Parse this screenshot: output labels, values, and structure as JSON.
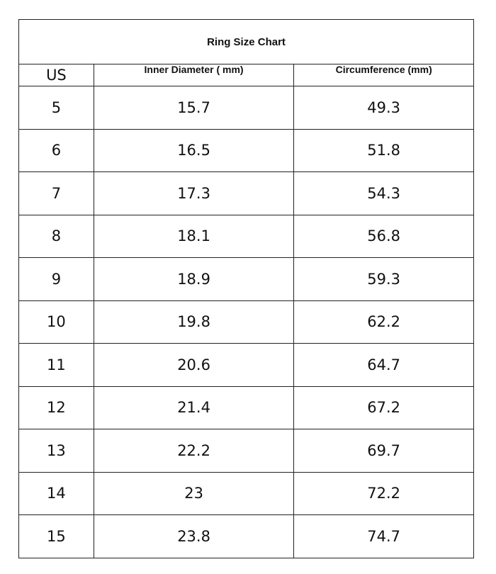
{
  "title": "Ring Size Chart",
  "headers": {
    "us": "US",
    "diameter": "Inner Diameter ( mm)",
    "circumference": "Circumference (mm)"
  },
  "rows": [
    {
      "us": "5",
      "diameter": "15.7",
      "circumference": "49.3"
    },
    {
      "us": "6",
      "diameter": "16.5",
      "circumference": "51.8"
    },
    {
      "us": "7",
      "diameter": "17.3",
      "circumference": "54.3"
    },
    {
      "us": "8",
      "diameter": "18.1",
      "circumference": "56.8"
    },
    {
      "us": "9",
      "diameter": "18.9",
      "circumference": "59.3"
    },
    {
      "us": "10",
      "diameter": "19.8",
      "circumference": "62.2"
    },
    {
      "us": "11",
      "diameter": "20.6",
      "circumference": "64.7"
    },
    {
      "us": "12",
      "diameter": "21.4",
      "circumference": "67.2"
    },
    {
      "us": "13",
      "diameter": "22.2",
      "circumference": "69.7"
    },
    {
      "us": "14",
      "diameter": "23",
      "circumference": "72.2"
    },
    {
      "us": "15",
      "diameter": "23.8",
      "circumference": "74.7"
    }
  ]
}
